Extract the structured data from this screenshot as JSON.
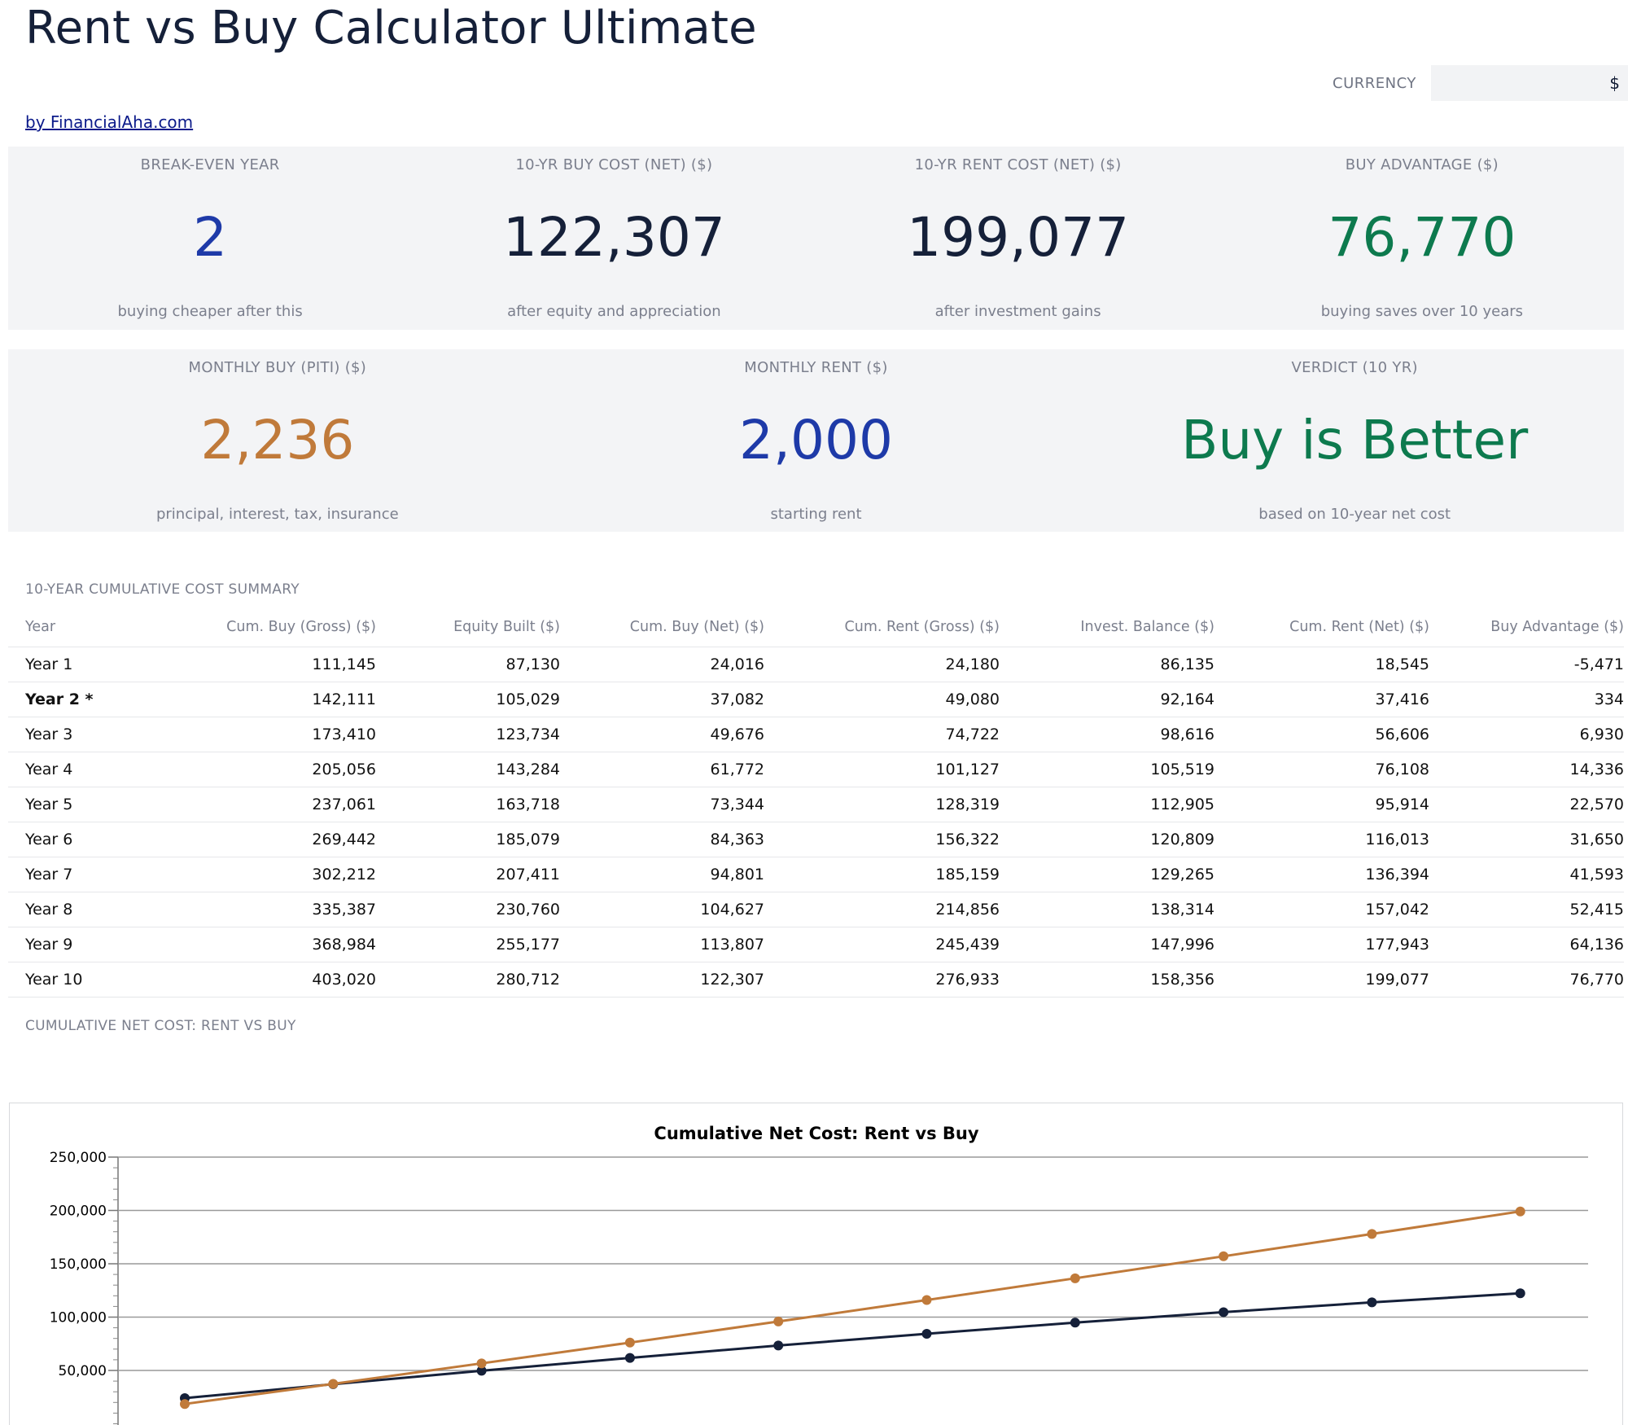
{
  "header": {
    "title": "Rent vs Buy Calculator Ultimate",
    "byline": "by FinancialAha.com",
    "currency_label": "CURRENCY",
    "currency_value": "$"
  },
  "kpis_row1": [
    {
      "label": "BREAK-EVEN YEAR",
      "value": "2",
      "sub": "buying cheaper after this",
      "color": "#1e3aa8"
    },
    {
      "label": "10-YR BUY COST (NET) ($)",
      "value": "122,307",
      "sub": "after equity and appreciation",
      "color": "#152039"
    },
    {
      "label": "10-YR RENT COST (NET) ($)",
      "value": "199,077",
      "sub": "after investment gains",
      "color": "#152039"
    },
    {
      "label": "BUY ADVANTAGE ($)",
      "value": "76,770",
      "sub": "buying saves over 10 years",
      "color": "#0d7a4e"
    }
  ],
  "kpis_row2": [
    {
      "label": "MONTHLY BUY (PITI) ($)",
      "value": "2,236",
      "sub": "principal, interest, tax, insurance",
      "color": "#c07a3a"
    },
    {
      "label": "MONTHLY RENT ($)",
      "value": "2,000",
      "sub": "starting rent",
      "color": "#1e3aa8"
    },
    {
      "label": "VERDICT (10 YR)",
      "value": "Buy is Better",
      "sub": "based on 10-year net cost",
      "color": "#0d7a4e"
    }
  ],
  "summary": {
    "label": "10-YEAR CUMULATIVE COST SUMMARY",
    "columns": [
      "Year",
      "Cum. Buy (Gross) ($)",
      "Equity Built ($)",
      "Cum. Buy (Net) ($)",
      "Cum. Rent (Gross) ($)",
      "Invest. Balance ($)",
      "Cum. Rent (Net) ($)",
      "Buy Advantage ($)"
    ],
    "rows": [
      {
        "year": "Year 1",
        "cum_buy_gross": "111,145",
        "equity": "87,130",
        "cum_buy_net": "24,016",
        "cum_rent_gross": "24,180",
        "invest": "86,135",
        "cum_rent_net": "18,545",
        "advantage": "-5,471"
      },
      {
        "year": "Year 2 *",
        "cum_buy_gross": "142,111",
        "equity": "105,029",
        "cum_buy_net": "37,082",
        "cum_rent_gross": "49,080",
        "invest": "92,164",
        "cum_rent_net": "37,416",
        "advantage": "334"
      },
      {
        "year": "Year 3",
        "cum_buy_gross": "173,410",
        "equity": "123,734",
        "cum_buy_net": "49,676",
        "cum_rent_gross": "74,722",
        "invest": "98,616",
        "cum_rent_net": "56,606",
        "advantage": "6,930"
      },
      {
        "year": "Year 4",
        "cum_buy_gross": "205,056",
        "equity": "143,284",
        "cum_buy_net": "61,772",
        "cum_rent_gross": "101,127",
        "invest": "105,519",
        "cum_rent_net": "76,108",
        "advantage": "14,336"
      },
      {
        "year": "Year 5",
        "cum_buy_gross": "237,061",
        "equity": "163,718",
        "cum_buy_net": "73,344",
        "cum_rent_gross": "128,319",
        "invest": "112,905",
        "cum_rent_net": "95,914",
        "advantage": "22,570"
      },
      {
        "year": "Year 6",
        "cum_buy_gross": "269,442",
        "equity": "185,079",
        "cum_buy_net": "84,363",
        "cum_rent_gross": "156,322",
        "invest": "120,809",
        "cum_rent_net": "116,013",
        "advantage": "31,650"
      },
      {
        "year": "Year 7",
        "cum_buy_gross": "302,212",
        "equity": "207,411",
        "cum_buy_net": "94,801",
        "cum_rent_gross": "185,159",
        "invest": "129,265",
        "cum_rent_net": "136,394",
        "advantage": "41,593"
      },
      {
        "year": "Year 8",
        "cum_buy_gross": "335,387",
        "equity": "230,760",
        "cum_buy_net": "104,627",
        "cum_rent_gross": "214,856",
        "invest": "138,314",
        "cum_rent_net": "157,042",
        "advantage": "52,415"
      },
      {
        "year": "Year 9",
        "cum_buy_gross": "368,984",
        "equity": "255,177",
        "cum_buy_net": "113,807",
        "cum_rent_gross": "245,439",
        "invest": "147,996",
        "cum_rent_net": "177,943",
        "advantage": "64,136"
      },
      {
        "year": "Year 10",
        "cum_buy_gross": "403,020",
        "equity": "280,712",
        "cum_buy_net": "122,307",
        "cum_rent_gross": "276,933",
        "invest": "158,356",
        "cum_rent_net": "199,077",
        "advantage": "76,770"
      }
    ]
  },
  "chart_section_label": "CUMULATIVE NET COST: RENT VS BUY",
  "chart_data": {
    "type": "line",
    "title": "Cumulative Net Cost: Rent vs Buy",
    "x": [
      1,
      2,
      3,
      4,
      5,
      6,
      7,
      8,
      9,
      10
    ],
    "yticks": [
      50000,
      100000,
      150000,
      200000,
      250000
    ],
    "ytick_labels": [
      "50,000",
      "100,000",
      "150,000",
      "200,000",
      "250,000"
    ],
    "ylim": [
      0,
      250000
    ],
    "grid": true,
    "series": [
      {
        "color": "#152039",
        "values": [
          24016,
          37082,
          49676,
          61772,
          73344,
          84363,
          94801,
          104627,
          113807,
          122307
        ]
      },
      {
        "color": "#c07a3a",
        "values": [
          18545,
          37416,
          56606,
          76108,
          95914,
          116013,
          136394,
          157042,
          177943,
          199077
        ]
      }
    ]
  }
}
